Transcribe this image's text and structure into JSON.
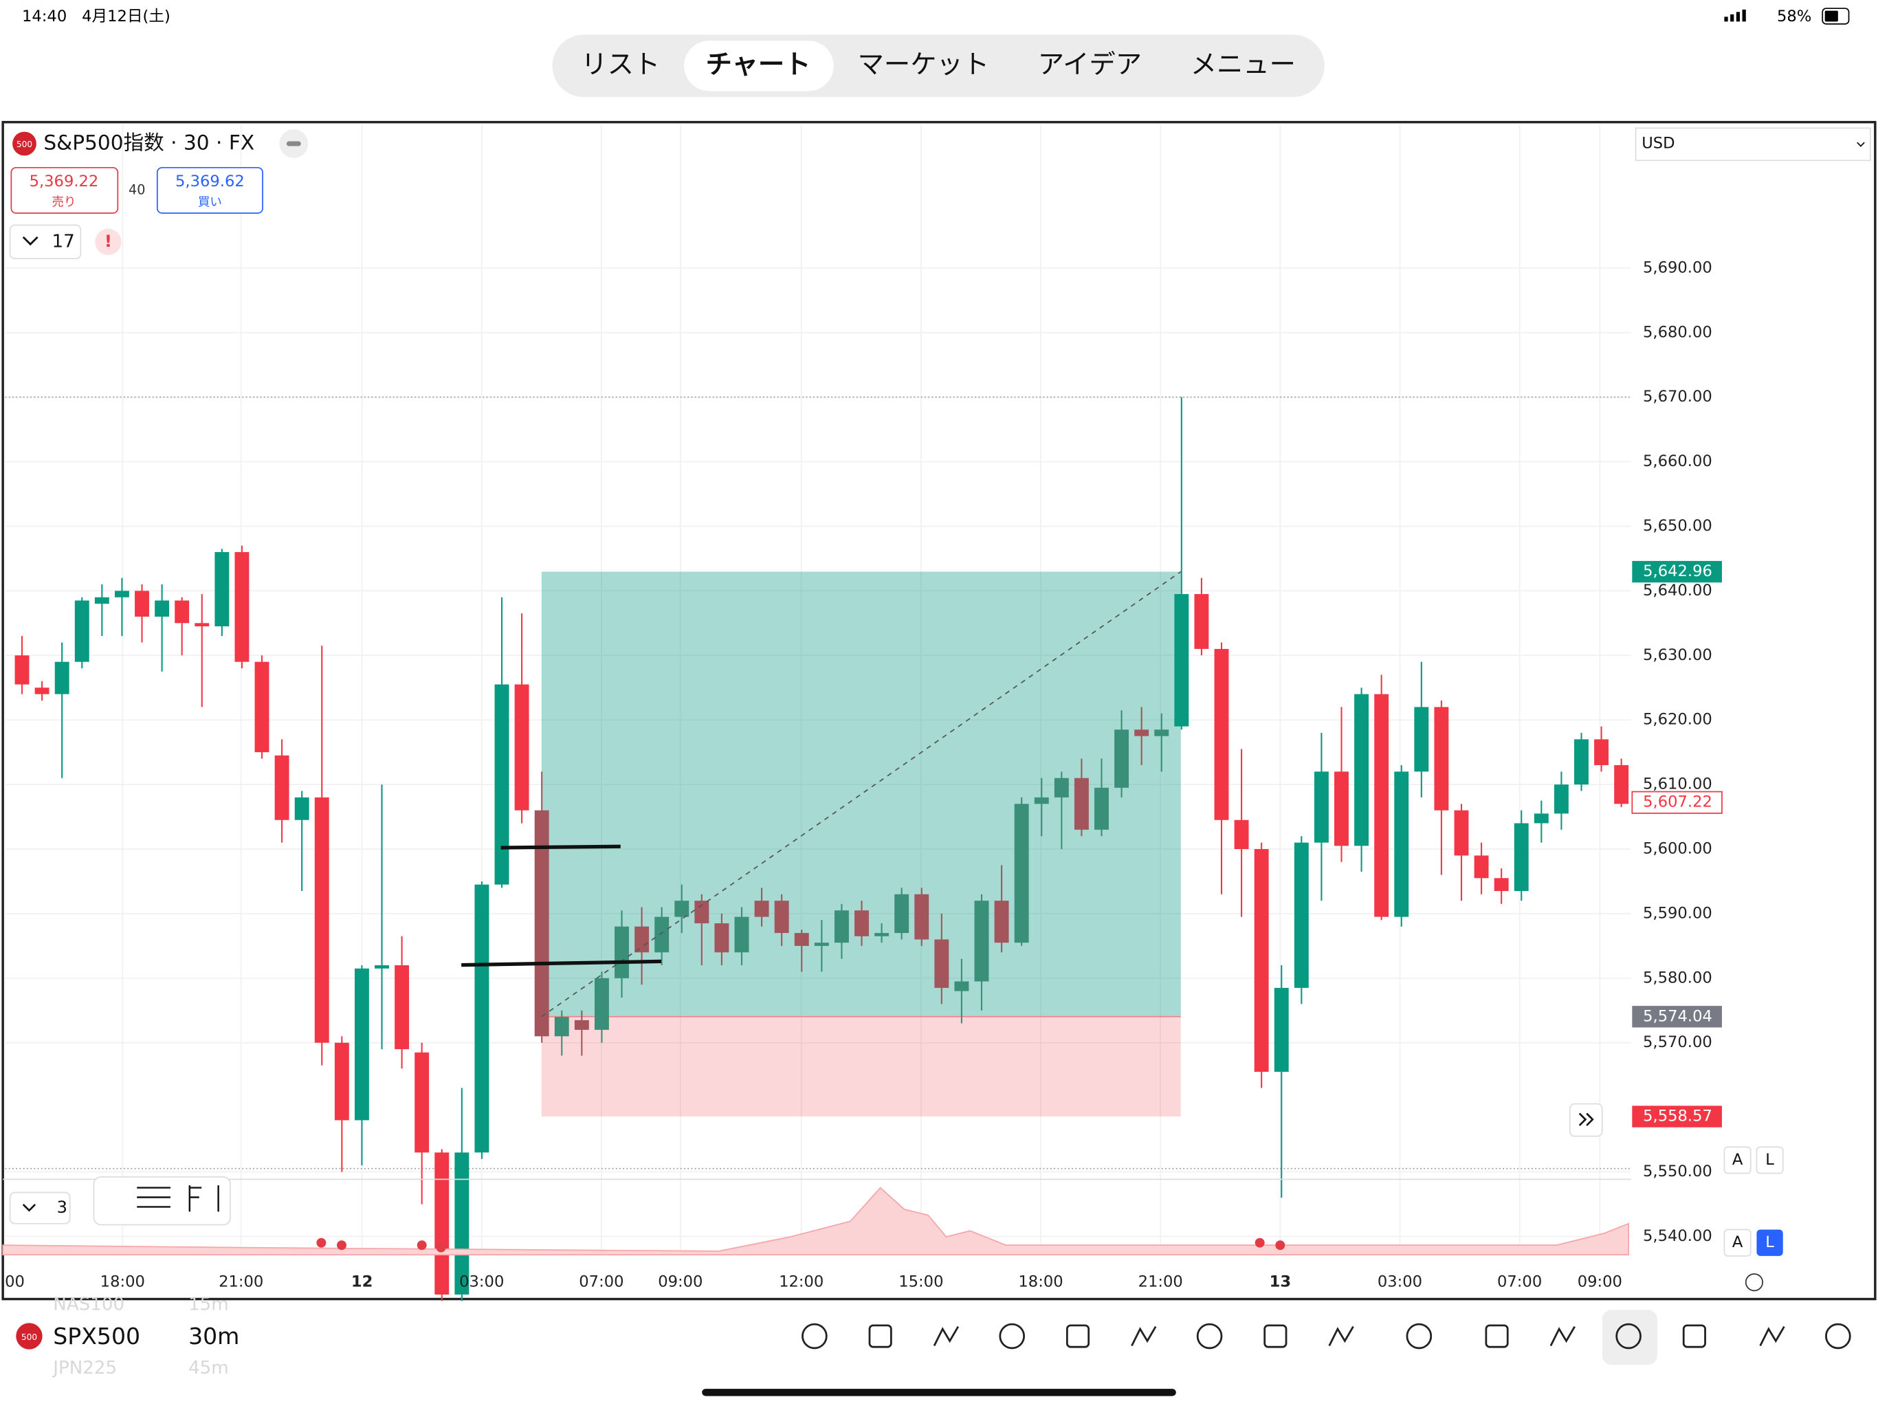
{
  "status": {
    "time": "14:40",
    "date": "4月12日(土)",
    "battery": "58%"
  },
  "tabs": [
    "リスト",
    "チャート",
    "マーケット",
    "アイデア",
    "メニュー"
  ],
  "symbol": {
    "icon": "500",
    "title": "S&P500指数 · 30 · FX",
    "sell_price": "5,369.22",
    "sell_label": "売り",
    "spread": "40",
    "buy_price": "5,369.62",
    "buy_label": "買い",
    "indicators": "17",
    "alert": "!",
    "currency": "USD"
  },
  "chart": {
    "type": "candlestick",
    "candles": [
      [
        5630,
        5633,
        5624,
        5625.5
      ],
      [
        5625,
        5626,
        5623,
        5624
      ],
      [
        5624,
        5632,
        5611,
        5629
      ],
      [
        5629,
        5639,
        5628,
        5638.5
      ],
      [
        5638,
        5641,
        5633,
        5639
      ],
      [
        5639,
        5642,
        5633,
        5640
      ],
      [
        5640,
        5641,
        5632,
        5636
      ],
      [
        5636,
        5641,
        5627.5,
        5638.5
      ],
      [
        5638.5,
        5639,
        5630,
        5635
      ],
      [
        5635,
        5639.5,
        5622,
        5634.5
      ],
      [
        5634.5,
        5646.5,
        5633,
        5646
      ],
      [
        5646,
        5647,
        5628,
        5629
      ],
      [
        5629,
        5630,
        5614,
        5615
      ],
      [
        5614.5,
        5617,
        5601,
        5604.5
      ],
      [
        5604.5,
        5609,
        5593.5,
        5608
      ],
      [
        5608,
        5631.5,
        5566.5,
        5570
      ],
      [
        5570,
        5571,
        5550,
        5558
      ],
      [
        5558,
        5582,
        5551,
        5581.5
      ],
      [
        5581.5,
        5610,
        5569,
        5582
      ],
      [
        5582,
        5586.5,
        5566,
        5569
      ],
      [
        5568.5,
        5570,
        5545,
        5553
      ],
      [
        5553,
        5553.5,
        5530,
        5531
      ],
      [
        5531,
        5563,
        5530,
        5553
      ],
      [
        5553,
        5595,
        5552,
        5594.5
      ],
      [
        5594.5,
        5639,
        5594,
        5625.5
      ],
      [
        5625.5,
        5636.5,
        5604,
        5606
      ],
      [
        5606,
        5612,
        5570,
        5571
      ],
      [
        5571,
        5575,
        5568,
        5574
      ],
      [
        5573.5,
        5575,
        5568,
        5572
      ],
      [
        5572,
        5581,
        5570,
        5580
      ],
      [
        5580,
        5590.5,
        5577,
        5588
      ],
      [
        5588,
        5591,
        5579,
        5584
      ],
      [
        5584,
        5591,
        5582,
        5589.5
      ],
      [
        5589.5,
        5594.5,
        5587,
        5592
      ],
      [
        5592,
        5593,
        5582,
        5588.5
      ],
      [
        5588.5,
        5590,
        5582,
        5584
      ],
      [
        5584,
        5591,
        5582,
        5589.5
      ],
      [
        5592,
        5594,
        5588,
        5589.5
      ],
      [
        5592,
        5593,
        5585,
        5587
      ],
      [
        5587,
        5587.5,
        5581,
        5585
      ],
      [
        5585,
        5589,
        5581,
        5585.5
      ],
      [
        5585.5,
        5591.5,
        5583,
        5590.5
      ],
      [
        5590.5,
        5592,
        5585,
        5586.5
      ],
      [
        5586.5,
        5588.5,
        5585.5,
        5587
      ],
      [
        5587,
        5594,
        5586,
        5593
      ],
      [
        5593,
        5594,
        5585,
        5586
      ],
      [
        5586,
        5590,
        5576,
        5578.5
      ],
      [
        5578,
        5583,
        5573,
        5579.5
      ],
      [
        5579.5,
        5593,
        5575,
        5592
      ],
      [
        5592,
        5597.5,
        5584,
        5585.5
      ],
      [
        5585.5,
        5608,
        5585,
        5607
      ],
      [
        5607,
        5611,
        5602,
        5608
      ],
      [
        5608,
        5612,
        5600,
        5611
      ],
      [
        5611,
        5614,
        5602,
        5603
      ],
      [
        5603,
        5614,
        5602,
        5609.5
      ],
      [
        5609.5,
        5621.5,
        5608,
        5618.5
      ],
      [
        5618.5,
        5622,
        5613,
        5617.5
      ],
      [
        5617.5,
        5621,
        5612,
        5618.5
      ],
      [
        5619,
        5670,
        5618.5,
        5639.5
      ],
      [
        5639.5,
        5642,
        5630,
        5631
      ],
      [
        5631,
        5632,
        5593,
        5604.5
      ],
      [
        5604.5,
        5615.5,
        5589.5,
        5600
      ],
      [
        5600,
        5601,
        5563,
        5565.5
      ],
      [
        5565.5,
        5582,
        5546,
        5578.5
      ],
      [
        5578.5,
        5602,
        5576,
        5601
      ],
      [
        5601,
        5618,
        5592,
        5612
      ],
      [
        5612,
        5622,
        5598,
        5600.5
      ],
      [
        5600.5,
        5625,
        5596.5,
        5624
      ],
      [
        5624,
        5627,
        5589,
        5589.5
      ],
      [
        5589.5,
        5613,
        5588,
        5612
      ],
      [
        5612,
        5629,
        5608,
        5622
      ],
      [
        5622,
        5623,
        5596,
        5606
      ],
      [
        5606,
        5607,
        5592,
        5599
      ],
      [
        5599,
        5601,
        5593,
        5595.5
      ],
      [
        5595.5,
        5597,
        5591.5,
        5593.5
      ],
      [
        5593.5,
        5606,
        5592,
        5604
      ],
      [
        5604,
        5607.5,
        5601,
        5605.5
      ],
      [
        5605.5,
        5612,
        5603,
        5610
      ],
      [
        5610,
        5618,
        5609,
        5617
      ],
      [
        5617,
        5619,
        5612,
        5613
      ],
      [
        5613,
        5614,
        5606.5,
        5607
      ]
    ],
    "ylim": [
      5530.3,
      5712.6
    ],
    "yticks": [
      {
        "value": 5690,
        "label": "5,690.00"
      },
      {
        "value": 5680,
        "label": "5,680.00"
      },
      {
        "value": 5670,
        "label": "5,670.00"
      },
      {
        "value": 5660,
        "label": "5,660.00"
      },
      {
        "value": 5650,
        "label": "5,650.00"
      },
      {
        "value": 5640,
        "label": "5,640.00"
      },
      {
        "value": 5630,
        "label": "5,630.00"
      },
      {
        "value": 5620,
        "label": "5,620.00"
      },
      {
        "value": 5610,
        "label": "5,610.00"
      },
      {
        "value": 5600,
        "label": "5,600.00"
      },
      {
        "value": 5590,
        "label": "5,590.00"
      },
      {
        "value": 5580,
        "label": "5,580.00"
      },
      {
        "value": 5570,
        "label": "5,570.00"
      },
      {
        "value": 5550,
        "label": "5,550.00"
      },
      {
        "value": 5540,
        "label": "5,540.00"
      }
    ],
    "xlabels": [
      "00",
      "18:00",
      "21:00",
      "12",
      "03:00",
      "07:00",
      "09:00",
      "12:00",
      "15:00",
      "18:00",
      "21:00",
      "13",
      "03:00",
      "07:00",
      "09:00"
    ],
    "target": {
      "value": 5642.96,
      "label": "5,642.96"
    },
    "entry": {
      "value": 5574.04,
      "label": "5,574.04"
    },
    "stop": {
      "value": 5558.57,
      "label": "5,558.57"
    },
    "last": {
      "value": 5607.22,
      "label": "5,607.22"
    },
    "volume_count": "3",
    "scale_auto": "A",
    "scale_log": "L"
  },
  "bottom": {
    "icon": "500",
    "symbol": "SPX500",
    "interval": "30m",
    "prev_symbol": "NAS100",
    "prev_interval": "15m",
    "next_symbol": "JPN225",
    "next_interval": "45m"
  }
}
